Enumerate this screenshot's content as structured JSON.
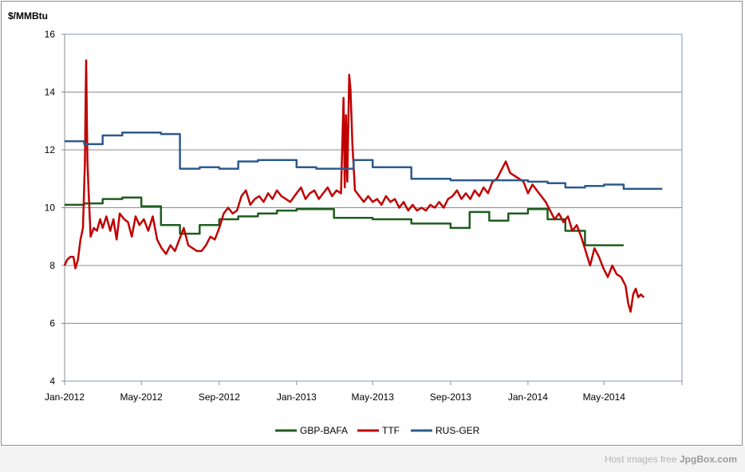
{
  "chart_data": {
    "type": "line",
    "ylabel": "$/MMBtu",
    "ylim": [
      4,
      16
    ],
    "yticks": [
      4,
      6,
      8,
      10,
      12,
      14,
      16
    ],
    "x_range": [
      "2012-01-01",
      "2014-09-01"
    ],
    "xticks": [
      {
        "date": "2012-01-01",
        "label": "Jan-2012"
      },
      {
        "date": "2012-05-01",
        "label": "May-2012"
      },
      {
        "date": "2012-09-01",
        "label": "Sep-2012"
      },
      {
        "date": "2013-01-01",
        "label": "Jan-2013"
      },
      {
        "date": "2013-05-01",
        "label": "May-2013"
      },
      {
        "date": "2013-09-01",
        "label": "Sep-2013"
      },
      {
        "date": "2014-01-01",
        "label": "Jan-2014"
      },
      {
        "date": "2014-05-01",
        "label": "May-2014"
      }
    ],
    "grid": true,
    "legend_position": "bottom",
    "series": [
      {
        "name": "GBP-BAFA",
        "color": "#1f5c1f",
        "step": true,
        "points": [
          [
            "2012-01-01",
            10.1
          ],
          [
            "2012-02-01",
            10.15
          ],
          [
            "2012-03-01",
            10.3
          ],
          [
            "2012-04-01",
            10.35
          ],
          [
            "2012-05-01",
            10.05
          ],
          [
            "2012-06-01",
            9.4
          ],
          [
            "2012-07-01",
            9.1
          ],
          [
            "2012-08-01",
            9.4
          ],
          [
            "2012-09-01",
            9.6
          ],
          [
            "2012-10-01",
            9.7
          ],
          [
            "2012-11-01",
            9.8
          ],
          [
            "2012-12-01",
            9.9
          ],
          [
            "2013-01-01",
            9.95
          ],
          [
            "2013-02-01",
            9.95
          ],
          [
            "2013-03-01",
            9.65
          ],
          [
            "2013-04-01",
            9.65
          ],
          [
            "2013-05-01",
            9.6
          ],
          [
            "2013-06-01",
            9.6
          ],
          [
            "2013-07-01",
            9.45
          ],
          [
            "2013-08-01",
            9.45
          ],
          [
            "2013-09-01",
            9.3
          ],
          [
            "2013-10-01",
            9.85
          ],
          [
            "2013-11-01",
            9.55
          ],
          [
            "2013-12-01",
            9.8
          ],
          [
            "2014-01-01",
            9.95
          ],
          [
            "2014-02-01",
            9.6
          ],
          [
            "2014-03-01",
            9.2
          ],
          [
            "2014-04-01",
            8.7
          ],
          [
            "2014-05-01",
            8.7
          ]
        ]
      },
      {
        "name": "TTF",
        "color": "#c00000",
        "step": false,
        "points": [
          [
            "2012-01-01",
            8.0
          ],
          [
            "2012-01-05",
            8.2
          ],
          [
            "2012-01-10",
            8.3
          ],
          [
            "2012-01-15",
            8.3
          ],
          [
            "2012-01-18",
            7.9
          ],
          [
            "2012-01-22",
            8.2
          ],
          [
            "2012-01-26",
            8.9
          ],
          [
            "2012-01-30",
            9.3
          ],
          [
            "2012-02-02",
            11.5
          ],
          [
            "2012-02-04",
            15.1
          ],
          [
            "2012-02-06",
            11.6
          ],
          [
            "2012-02-08",
            10.5
          ],
          [
            "2012-02-11",
            9.0
          ],
          [
            "2012-02-16",
            9.3
          ],
          [
            "2012-02-21",
            9.2
          ],
          [
            "2012-02-26",
            9.6
          ],
          [
            "2012-03-01",
            9.3
          ],
          [
            "2012-03-07",
            9.7
          ],
          [
            "2012-03-13",
            9.2
          ],
          [
            "2012-03-18",
            9.6
          ],
          [
            "2012-03-23",
            8.9
          ],
          [
            "2012-03-28",
            9.8
          ],
          [
            "2012-04-04",
            9.6
          ],
          [
            "2012-04-10",
            9.5
          ],
          [
            "2012-04-16",
            9.0
          ],
          [
            "2012-04-22",
            9.7
          ],
          [
            "2012-04-28",
            9.4
          ],
          [
            "2012-05-05",
            9.6
          ],
          [
            "2012-05-12",
            9.2
          ],
          [
            "2012-05-19",
            9.7
          ],
          [
            "2012-05-26",
            8.9
          ],
          [
            "2012-06-02",
            8.6
          ],
          [
            "2012-06-09",
            8.4
          ],
          [
            "2012-06-16",
            8.7
          ],
          [
            "2012-06-23",
            8.5
          ],
          [
            "2012-06-30",
            8.9
          ],
          [
            "2012-07-07",
            9.3
          ],
          [
            "2012-07-14",
            8.7
          ],
          [
            "2012-07-21",
            8.6
          ],
          [
            "2012-07-28",
            8.5
          ],
          [
            "2012-08-04",
            8.5
          ],
          [
            "2012-08-11",
            8.7
          ],
          [
            "2012-08-18",
            9.0
          ],
          [
            "2012-08-25",
            8.9
          ],
          [
            "2012-09-01",
            9.3
          ],
          [
            "2012-09-08",
            9.8
          ],
          [
            "2012-09-15",
            10.0
          ],
          [
            "2012-09-22",
            9.8
          ],
          [
            "2012-09-29",
            9.9
          ],
          [
            "2012-10-06",
            10.4
          ],
          [
            "2012-10-13",
            10.6
          ],
          [
            "2012-10-20",
            10.1
          ],
          [
            "2012-10-27",
            10.3
          ],
          [
            "2012-11-03",
            10.4
          ],
          [
            "2012-11-10",
            10.2
          ],
          [
            "2012-11-17",
            10.5
          ],
          [
            "2012-11-24",
            10.3
          ],
          [
            "2012-12-01",
            10.6
          ],
          [
            "2012-12-08",
            10.4
          ],
          [
            "2012-12-15",
            10.3
          ],
          [
            "2012-12-22",
            10.2
          ],
          [
            "2013-01-01",
            10.5
          ],
          [
            "2013-01-08",
            10.7
          ],
          [
            "2013-01-15",
            10.3
          ],
          [
            "2013-01-22",
            10.5
          ],
          [
            "2013-01-29",
            10.6
          ],
          [
            "2013-02-05",
            10.3
          ],
          [
            "2013-02-12",
            10.5
          ],
          [
            "2013-02-19",
            10.7
          ],
          [
            "2013-02-26",
            10.4
          ],
          [
            "2013-03-05",
            10.6
          ],
          [
            "2013-03-12",
            10.5
          ],
          [
            "2013-03-16",
            13.8
          ],
          [
            "2013-03-18",
            10.7
          ],
          [
            "2013-03-20",
            13.2
          ],
          [
            "2013-03-22",
            10.9
          ],
          [
            "2013-03-25",
            14.6
          ],
          [
            "2013-03-27",
            14.1
          ],
          [
            "2013-03-30",
            12.2
          ],
          [
            "2013-04-03",
            10.6
          ],
          [
            "2013-04-10",
            10.4
          ],
          [
            "2013-04-17",
            10.2
          ],
          [
            "2013-04-24",
            10.4
          ],
          [
            "2013-05-01",
            10.2
          ],
          [
            "2013-05-08",
            10.3
          ],
          [
            "2013-05-15",
            10.1
          ],
          [
            "2013-05-22",
            10.4
          ],
          [
            "2013-05-29",
            10.2
          ],
          [
            "2013-06-05",
            10.3
          ],
          [
            "2013-06-12",
            10.0
          ],
          [
            "2013-06-19",
            10.2
          ],
          [
            "2013-06-26",
            9.9
          ],
          [
            "2013-07-03",
            10.1
          ],
          [
            "2013-07-10",
            9.9
          ],
          [
            "2013-07-17",
            10.0
          ],
          [
            "2013-07-24",
            9.9
          ],
          [
            "2013-07-31",
            10.1
          ],
          [
            "2013-08-07",
            10.0
          ],
          [
            "2013-08-14",
            10.2
          ],
          [
            "2013-08-21",
            10.0
          ],
          [
            "2013-08-28",
            10.3
          ],
          [
            "2013-09-04",
            10.4
          ],
          [
            "2013-09-11",
            10.6
          ],
          [
            "2013-09-18",
            10.3
          ],
          [
            "2013-09-25",
            10.5
          ],
          [
            "2013-10-02",
            10.3
          ],
          [
            "2013-10-09",
            10.6
          ],
          [
            "2013-10-16",
            10.4
          ],
          [
            "2013-10-23",
            10.7
          ],
          [
            "2013-10-30",
            10.5
          ],
          [
            "2013-11-06",
            10.9
          ],
          [
            "2013-11-13",
            11.0
          ],
          [
            "2013-11-20",
            11.3
          ],
          [
            "2013-11-27",
            11.6
          ],
          [
            "2013-12-04",
            11.2
          ],
          [
            "2013-12-11",
            11.1
          ],
          [
            "2013-12-18",
            11.0
          ],
          [
            "2013-12-25",
            10.9
          ],
          [
            "2014-01-01",
            10.5
          ],
          [
            "2014-01-08",
            10.8
          ],
          [
            "2014-01-15",
            10.6
          ],
          [
            "2014-01-22",
            10.4
          ],
          [
            "2014-01-29",
            10.2
          ],
          [
            "2014-02-05",
            9.9
          ],
          [
            "2014-02-12",
            9.6
          ],
          [
            "2014-02-19",
            9.8
          ],
          [
            "2014-02-26",
            9.5
          ],
          [
            "2014-03-05",
            9.7
          ],
          [
            "2014-03-12",
            9.2
          ],
          [
            "2014-03-19",
            9.4
          ],
          [
            "2014-03-26",
            9.0
          ],
          [
            "2014-04-02",
            8.5
          ],
          [
            "2014-04-09",
            8.0
          ],
          [
            "2014-04-16",
            8.6
          ],
          [
            "2014-04-23",
            8.3
          ],
          [
            "2014-04-30",
            7.9
          ],
          [
            "2014-05-07",
            7.6
          ],
          [
            "2014-05-14",
            8.0
          ],
          [
            "2014-05-21",
            7.7
          ],
          [
            "2014-05-28",
            7.6
          ],
          [
            "2014-06-04",
            7.3
          ],
          [
            "2014-06-08",
            6.7
          ],
          [
            "2014-06-12",
            6.4
          ],
          [
            "2014-06-16",
            7.0
          ],
          [
            "2014-06-20",
            7.2
          ],
          [
            "2014-06-24",
            6.9
          ],
          [
            "2014-06-28",
            7.0
          ],
          [
            "2014-07-03",
            6.9
          ]
        ]
      },
      {
        "name": "RUS-GER",
        "color": "#2e5a8e",
        "step": true,
        "points": [
          [
            "2012-01-01",
            12.3
          ],
          [
            "2012-02-01",
            12.2
          ],
          [
            "2012-03-01",
            12.5
          ],
          [
            "2012-04-01",
            12.6
          ],
          [
            "2012-05-01",
            12.6
          ],
          [
            "2012-06-01",
            12.55
          ],
          [
            "2012-07-01",
            11.35
          ],
          [
            "2012-08-01",
            11.4
          ],
          [
            "2012-09-01",
            11.35
          ],
          [
            "2012-10-01",
            11.6
          ],
          [
            "2012-11-01",
            11.65
          ],
          [
            "2012-12-01",
            11.65
          ],
          [
            "2013-01-01",
            11.4
          ],
          [
            "2013-02-01",
            11.35
          ],
          [
            "2013-03-01",
            11.35
          ],
          [
            "2013-04-01",
            11.65
          ],
          [
            "2013-05-01",
            11.4
          ],
          [
            "2013-06-01",
            11.4
          ],
          [
            "2013-07-01",
            11.0
          ],
          [
            "2013-08-01",
            11.0
          ],
          [
            "2013-09-01",
            10.95
          ],
          [
            "2013-10-01",
            10.95
          ],
          [
            "2013-11-01",
            10.95
          ],
          [
            "2013-12-01",
            10.95
          ],
          [
            "2014-01-01",
            10.9
          ],
          [
            "2014-02-01",
            10.85
          ],
          [
            "2014-03-01",
            10.7
          ],
          [
            "2014-04-01",
            10.75
          ],
          [
            "2014-05-01",
            10.8
          ],
          [
            "2014-06-01",
            10.65
          ],
          [
            "2014-07-01",
            10.65
          ]
        ]
      }
    ]
  },
  "watermark": {
    "prefix": "Host images free",
    "brand": "JpgBox.com"
  }
}
